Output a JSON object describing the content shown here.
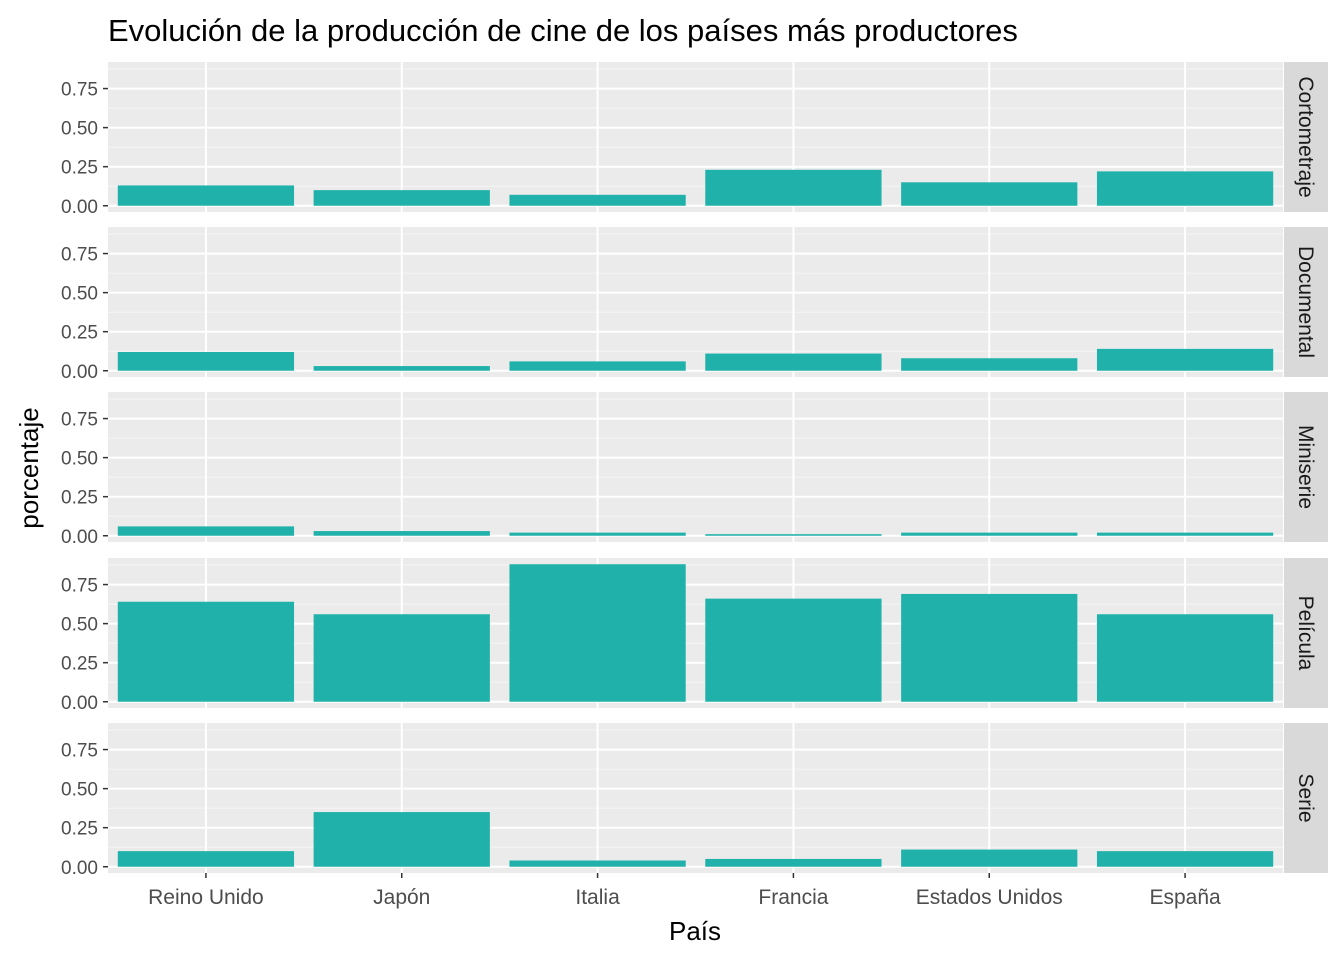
{
  "chart_data": {
    "type": "bar",
    "title": "Evolución de la producción de cine de los países más productores",
    "xlabel": "País",
    "ylabel": "porcentaje",
    "categories": [
      "Reino Unido",
      "Japón",
      "Italia",
      "Francia",
      "Estados Unidos",
      "España"
    ],
    "ylim": [
      0,
      0.88
    ],
    "yticks": [
      0.0,
      0.25,
      0.5,
      0.75
    ],
    "ytick_labels": [
      "0.00",
      "0.25",
      "0.50",
      "0.75"
    ],
    "grid": true,
    "bar_color": "#20B2AA",
    "panel_bg": "#EBEBEB",
    "strip_bg": "#D9D9D9",
    "facets": [
      {
        "label": "Cortometraje",
        "values": [
          0.13,
          0.1,
          0.07,
          0.23,
          0.15,
          0.22
        ]
      },
      {
        "label": "Documental",
        "values": [
          0.12,
          0.03,
          0.06,
          0.11,
          0.08,
          0.14
        ]
      },
      {
        "label": "Miniserie",
        "values": [
          0.06,
          0.03,
          0.02,
          0.01,
          0.02,
          0.02
        ]
      },
      {
        "label": "Película",
        "values": [
          0.64,
          0.56,
          0.88,
          0.66,
          0.69,
          0.56
        ]
      },
      {
        "label": "Serie",
        "values": [
          0.1,
          0.35,
          0.04,
          0.05,
          0.11,
          0.1
        ]
      }
    ]
  }
}
